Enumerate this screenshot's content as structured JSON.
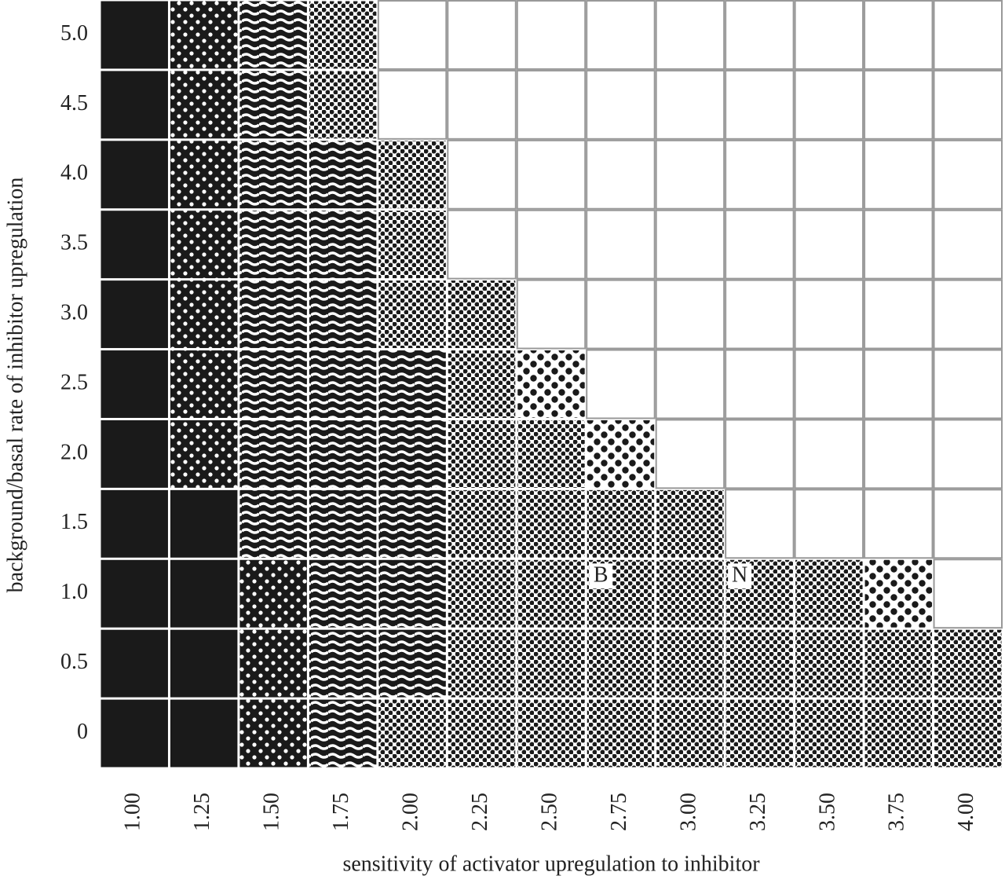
{
  "y_axis_title": "background/basal rate of inhibitor upregulation",
  "x_axis_title": "sensitivity of activator upregulation to inhibitor",
  "row_labels": [
    "5.0",
    "4.5",
    "4.0",
    "3.5",
    "3.0",
    "2.5",
    "2.0",
    "1.5",
    "1.0",
    "0.5",
    "0"
  ],
  "column_labels": [
    "1.00",
    "1.25",
    "1.50",
    "1.75",
    "2.00",
    "2.25",
    "2.50",
    "2.75",
    "3.00",
    "3.25",
    "3.50",
    "3.75",
    "4.00"
  ],
  "cells": [
    [
      "black",
      "spots",
      "stripes",
      "dots",
      "white",
      "white",
      "white",
      "white",
      "white",
      "white",
      "white",
      "white",
      "white"
    ],
    [
      "black",
      "spots",
      "stripes",
      "dots",
      "white",
      "white",
      "white",
      "white",
      "white",
      "white",
      "white",
      "white",
      "white"
    ],
    [
      "black",
      "spots",
      "stripes",
      "stripes",
      "dots",
      "white",
      "white",
      "white",
      "white",
      "white",
      "white",
      "white",
      "white"
    ],
    [
      "black",
      "spots",
      "stripes",
      "stripes",
      "dots",
      "white",
      "white",
      "white",
      "white",
      "white",
      "white",
      "white",
      "white"
    ],
    [
      "black",
      "spots",
      "stripes",
      "stripes",
      "dots",
      "dots",
      "white",
      "white",
      "white",
      "white",
      "white",
      "white",
      "white"
    ],
    [
      "black",
      "spots",
      "stripes",
      "stripes",
      "stripes",
      "dots",
      "sparse-dots",
      "white",
      "white",
      "white",
      "white",
      "white",
      "white"
    ],
    [
      "black",
      "spots",
      "stripes",
      "stripes",
      "stripes",
      "dots",
      "dots",
      "sparse-dots",
      "white",
      "white",
      "white",
      "white",
      "white"
    ],
    [
      "black",
      "black",
      "stripes",
      "stripes",
      "stripes",
      "dots",
      "dots",
      "dots",
      "dots",
      "white",
      "white",
      "white",
      "white"
    ],
    [
      "black",
      "black",
      "spots",
      "stripes",
      "stripes",
      "dots",
      "dots",
      "dots",
      "dots",
      "dots",
      "dots",
      "sparse-dots",
      "white"
    ],
    [
      "black",
      "black",
      "spots",
      "stripes",
      "stripes",
      "dots",
      "dots",
      "dots",
      "dots",
      "dots",
      "dots",
      "dots",
      "dots"
    ],
    [
      "black",
      "black",
      "spots",
      "stripes",
      "dots",
      "dots",
      "dots",
      "dots",
      "dots",
      "dots",
      "dots",
      "dots",
      "dots"
    ]
  ],
  "annotations": [
    {
      "text": "B",
      "row_label": "1.0",
      "column_label": "2.75"
    },
    {
      "text": "N",
      "row_label": "1.0",
      "column_label": "3.25"
    }
  ]
}
